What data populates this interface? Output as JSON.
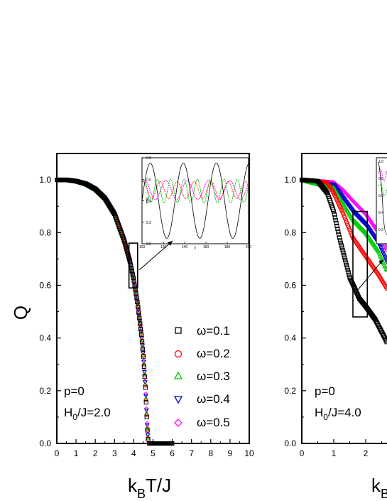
{
  "chart_data": [
    {
      "type": "scatter",
      "panel": "left",
      "ylabel": "Q",
      "xlabel": {
        "k": "k",
        "sub": "B",
        "rest": "T/J"
      },
      "xlim": [
        0,
        10
      ],
      "ylim": [
        0,
        1.1
      ],
      "xticks": [
        "0",
        "1",
        "2",
        "3",
        "4",
        "5",
        "6",
        "7",
        "8",
        "9",
        "10"
      ],
      "yticks": [
        "0.0",
        "0.2",
        "0.4",
        "0.6",
        "0.8",
        "1.0"
      ],
      "annotation": {
        "p": "p=0",
        "h_main": "H",
        "h_sub": "0",
        "h_rest": "/J=2.0"
      },
      "legend_position": "lower-right",
      "series": [
        {
          "name": "ω=0.1",
          "marker": "square",
          "color": "#000000"
        },
        {
          "name": "ω=0.2",
          "marker": "circle",
          "color": "#ff0000"
        },
        {
          "name": "ω=0.3",
          "marker": "triangle-up",
          "color": "#00cc00"
        },
        {
          "name": "ω=0.4",
          "marker": "triangle-down",
          "color": "#0000cc"
        },
        {
          "name": "ω=0.5",
          "marker": "diamond",
          "color": "#ff00ff"
        }
      ],
      "curve_points": [
        [
          0,
          1.0
        ],
        [
          0.5,
          1.0
        ],
        [
          1.0,
          0.995
        ],
        [
          1.5,
          0.985
        ],
        [
          2.0,
          0.965
        ],
        [
          2.5,
          0.93
        ],
        [
          3.0,
          0.87
        ],
        [
          3.5,
          0.77
        ],
        [
          3.8,
          0.69
        ],
        [
          4.0,
          0.62
        ],
        [
          4.2,
          0.53
        ],
        [
          4.4,
          0.41
        ],
        [
          4.5,
          0.33
        ],
        [
          4.6,
          0.22
        ],
        [
          4.65,
          0.14
        ],
        [
          4.7,
          0.06
        ],
        [
          4.75,
          0.01
        ],
        [
          5.0,
          0.0
        ],
        [
          6.0,
          0.0
        ]
      ],
      "zoom_box": {
        "x": [
          3.75,
          4.2
        ],
        "y": [
          0.59,
          0.76
        ]
      },
      "inset": {
        "xlabel": "t",
        "ylabel": "m(t)",
        "xlim": [
          100,
          200
        ],
        "ylim": [
          0.0,
          0.8
        ],
        "xticks": [
          "100",
          "120",
          "140",
          "160",
          "180",
          "200"
        ],
        "yticks": [
          "0.0",
          "0.2",
          "0.4",
          "0.6",
          "0.8"
        ]
      }
    },
    {
      "type": "scatter",
      "panel": "right",
      "xlabel": {
        "k": "k",
        "sub": "B",
        "rest": ""
      },
      "xlim": [
        0,
        2.8
      ],
      "ylim": [
        0,
        1.1
      ],
      "xticks": [
        "0",
        "1",
        "2"
      ],
      "yticks": [
        "0.0",
        "0.2",
        "0.4",
        "0.6",
        "0.8",
        "1.0"
      ],
      "annotation": {
        "p": "p=0",
        "h_main": "H",
        "h_sub": "0",
        "h_rest": "/J=4.0"
      },
      "series_points": [
        {
          "color": "#000000",
          "marker": "square",
          "points": [
            [
              0,
              1.0
            ],
            [
              0.5,
              0.995
            ],
            [
              0.8,
              0.95
            ],
            [
              1.0,
              0.88
            ],
            [
              1.2,
              0.77
            ],
            [
              1.5,
              0.63
            ],
            [
              1.8,
              0.55
            ],
            [
              2.0,
              0.52
            ],
            [
              2.3,
              0.47
            ],
            [
              2.6,
              0.4
            ],
            [
              2.8,
              0.35
            ]
          ]
        },
        {
          "color": "#ff0000",
          "marker": "circle",
          "points": [
            [
              0,
              1.0
            ],
            [
              0.8,
              0.99
            ],
            [
              1.0,
              0.95
            ],
            [
              1.3,
              0.87
            ],
            [
              1.6,
              0.78
            ],
            [
              2.0,
              0.71
            ],
            [
              2.4,
              0.64
            ],
            [
              2.8,
              0.56
            ]
          ]
        },
        {
          "color": "#00cc00",
          "marker": "triangle-up",
          "points": [
            [
              0,
              1.0
            ],
            [
              1.0,
              0.97
            ],
            [
              1.3,
              0.91
            ],
            [
              1.6,
              0.85
            ],
            [
              2.0,
              0.8
            ],
            [
              2.4,
              0.73
            ],
            [
              2.8,
              0.62
            ]
          ]
        },
        {
          "color": "#0000cc",
          "marker": "triangle-down",
          "points": [
            [
              0,
              1.0
            ],
            [
              1.0,
              0.98
            ],
            [
              1.3,
              0.93
            ],
            [
              1.6,
              0.88
            ],
            [
              2.0,
              0.83
            ],
            [
              2.4,
              0.76
            ],
            [
              2.8,
              0.65
            ]
          ]
        },
        {
          "color": "#ff00ff",
          "marker": "diamond",
          "points": [
            [
              0,
              1.0
            ],
            [
              1.0,
              0.99
            ],
            [
              1.3,
              0.96
            ],
            [
              1.6,
              0.92
            ],
            [
              2.0,
              0.87
            ],
            [
              2.4,
              0.8
            ],
            [
              2.8,
              0.7
            ]
          ]
        }
      ],
      "zoom_box": {
        "x": [
          1.6,
          2.05
        ],
        "y": [
          0.48,
          0.88
        ]
      },
      "inset": {
        "yticks": [
          "1.0",
          "0.8",
          "0.6",
          "0.4",
          "0.2"
        ]
      }
    }
  ]
}
